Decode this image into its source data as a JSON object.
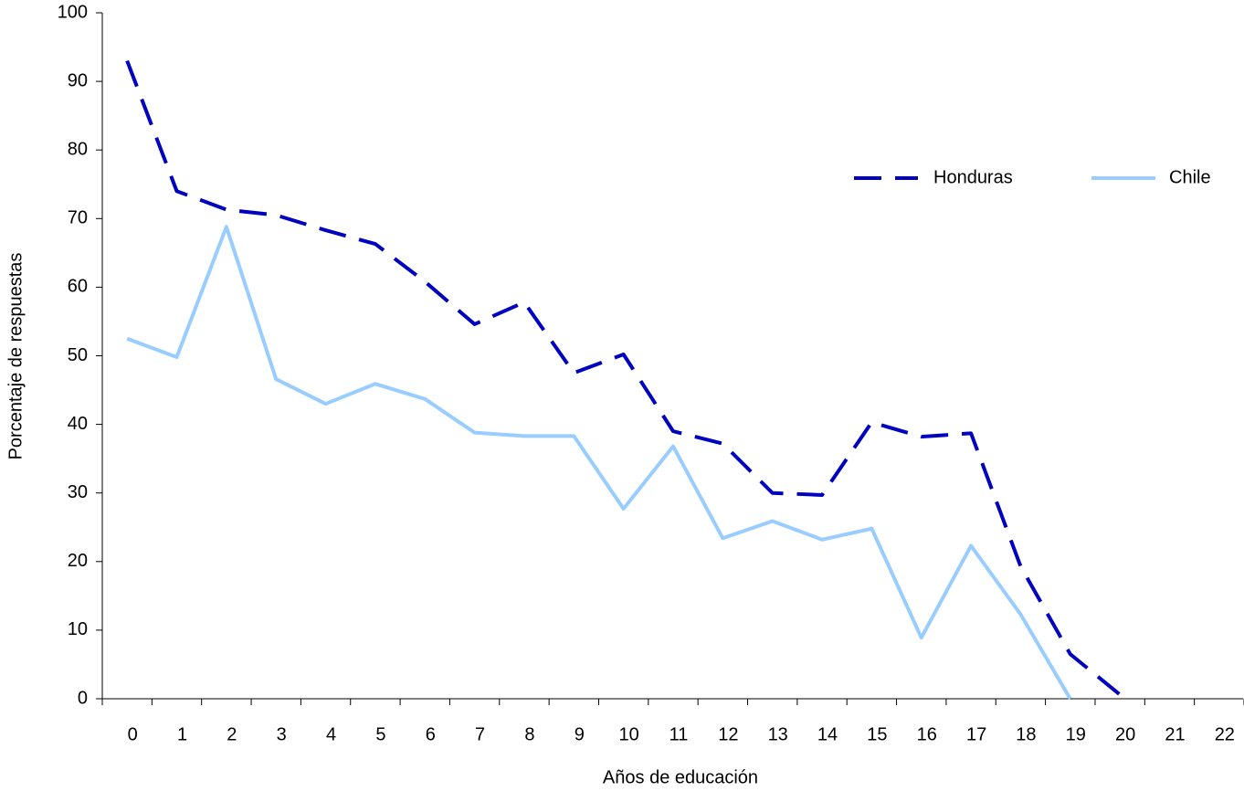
{
  "chart_data": {
    "type": "line",
    "x_label": "Años de educación",
    "y_label": "Porcentaje de respuestas",
    "categories": [
      "0",
      "1",
      "2",
      "3",
      "4",
      "5",
      "6",
      "7",
      "8",
      "9",
      "10",
      "11",
      "12",
      "13",
      "14",
      "15",
      "16",
      "17",
      "18",
      "19",
      "20",
      "21",
      "22"
    ],
    "series": [
      {
        "name": "Honduras",
        "color": "#0000c0",
        "dashed": true,
        "values": [
          93,
          74,
          71.3,
          70.5,
          68.3,
          66.3,
          60.8,
          54.6,
          57.8,
          47.5,
          50.2,
          39,
          37.2,
          30,
          29.7,
          40.3,
          38.2,
          38.7,
          19.3,
          6.5,
          0.6,
          null,
          null
        ]
      },
      {
        "name": "Chile",
        "color": "#99ccff",
        "dashed": false,
        "values": [
          52.5,
          49.8,
          68.8,
          46.6,
          43,
          45.9,
          43.7,
          38.8,
          38.3,
          38.3,
          27.7,
          36.8,
          23.4,
          25.9,
          23.2,
          24.8,
          8.9,
          22.3,
          12.3,
          0,
          null,
          null,
          null
        ]
      }
    ],
    "ylim": [
      0,
      100
    ],
    "yticks": [
      0,
      10,
      20,
      30,
      40,
      50,
      60,
      70,
      80,
      90,
      100
    ],
    "grid": false,
    "legend_position": "upper right"
  }
}
